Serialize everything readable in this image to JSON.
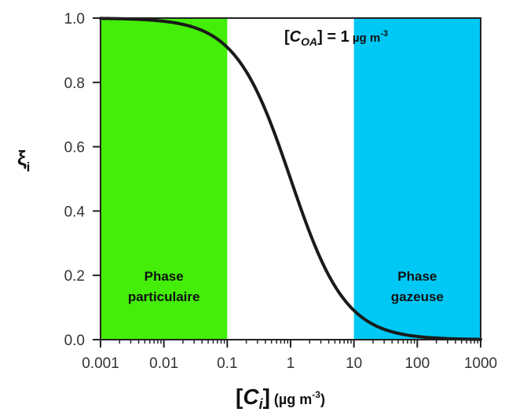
{
  "chart_data": {
    "type": "line",
    "x_scale": "log",
    "xlim": [
      0.001,
      1000
    ],
    "ylim": [
      0,
      1
    ],
    "xticks": [
      "0.001",
      "0.01",
      "0.1",
      "1",
      "10",
      "100",
      "1000"
    ],
    "yticks": [
      "0.0",
      "0.2",
      "0.4",
      "0.6",
      "0.8",
      "1.0"
    ],
    "ylabel": {
      "main": "ξ",
      "sub": "i"
    },
    "xlabel": {
      "open": "[",
      "var": "C",
      "sub": "i",
      "close": "]",
      "unit_open": " (µg m",
      "unit_exp": "-3",
      "unit_close": ")"
    },
    "annotation": {
      "open": "[",
      "var": "C",
      "sub": "OA",
      "close": "] = ",
      "value": "1",
      "unit": " µg m",
      "unit_exp": "-3"
    },
    "regions": [
      {
        "x_from": 0.001,
        "x_to": 0.1,
        "color": "#44ee08",
        "label_lines": [
          "Phase",
          "particulaire"
        ]
      },
      {
        "x_from": 10,
        "x_to": 1000,
        "color": "#00c8f5",
        "label_lines": [
          "Phase",
          "gazeuse"
        ]
      }
    ],
    "series": [
      {
        "color": "#1a1a1a",
        "c_oa": 1,
        "x": [
          0.001,
          0.003,
          0.01,
          0.02,
          0.05,
          0.1,
          0.2,
          0.5,
          1,
          2,
          5,
          10,
          20,
          50,
          100,
          200,
          500,
          1000
        ],
        "y": [
          0.999,
          0.997,
          0.99,
          0.98,
          0.952,
          0.909,
          0.833,
          0.667,
          0.5,
          0.333,
          0.167,
          0.091,
          0.048,
          0.02,
          0.01,
          0.005,
          0.002,
          0.001
        ]
      }
    ]
  }
}
